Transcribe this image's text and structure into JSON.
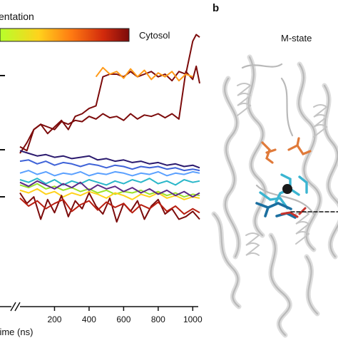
{
  "panel_left": {
    "colorbar_left_label": "entation",
    "colorbar_right_label": "Cytosol",
    "colorbar_colors": [
      "#b6ff2b",
      "#ffd21c",
      "#ff7b12",
      "#d22a0c",
      "#7c0b0b"
    ]
  },
  "panel_right": {
    "panel_letter": "b",
    "state_label": "M-state",
    "protein_color": "#cfcfcf",
    "ligand_colors": [
      "#3bb5d1",
      "#e07a3a",
      "#1b6fa0",
      "#c8322b"
    ]
  },
  "chart_data": {
    "type": "line",
    "title": "",
    "xlabel": "Time (ns)",
    "ylabel": "",
    "xlim": [
      0,
      1040
    ],
    "x_ticks": [
      200,
      400,
      600,
      800,
      1000
    ],
    "series": [
      {
        "color": "#7c0b0b",
        "x": [
          0,
          40,
          80,
          120,
          160,
          200,
          240,
          280,
          320,
          360,
          400,
          440,
          480,
          520,
          560,
          600,
          640,
          680,
          720,
          760,
          800,
          840,
          880,
          920,
          960,
          1000,
          1020,
          1040
        ],
        "y": [
          0.05,
          0.02,
          0.18,
          0.22,
          0.15,
          0.2,
          0.25,
          0.18,
          0.28,
          0.3,
          0.34,
          0.36,
          0.58,
          0.6,
          0.6,
          0.58,
          0.62,
          0.58,
          0.6,
          0.62,
          0.58,
          0.6,
          0.55,
          0.62,
          0.6,
          0.85,
          0.9,
          0.88
        ]
      },
      {
        "color": "#7c0b0b",
        "x": [
          0,
          40,
          80,
          120,
          160,
          200,
          240,
          280,
          320,
          360,
          400,
          440,
          480,
          520,
          560,
          600,
          640,
          680,
          720,
          760,
          800,
          840,
          880,
          920,
          960,
          1000,
          1020,
          1040
        ],
        "y": [
          0.0,
          0.08,
          0.18,
          0.22,
          0.2,
          0.18,
          0.24,
          0.22,
          0.25,
          0.24,
          0.28,
          0.26,
          0.3,
          0.27,
          0.28,
          0.25,
          0.3,
          0.26,
          0.29,
          0.28,
          0.3,
          0.27,
          0.3,
          0.26,
          0.62,
          0.56,
          0.66,
          0.53
        ]
      },
      {
        "color": "#ff9a18",
        "x": [
          440,
          480,
          520,
          560,
          600,
          640,
          680,
          720,
          760,
          800,
          840,
          880,
          920,
          960,
          1000
        ],
        "y": [
          0.58,
          0.65,
          0.6,
          0.62,
          0.57,
          0.64,
          0.58,
          0.63,
          0.56,
          0.61,
          0.58,
          0.62,
          0.55,
          0.6,
          0.58
        ]
      },
      {
        "color": "#2b1a6e",
        "x": [
          0,
          50,
          100,
          150,
          200,
          250,
          300,
          350,
          400,
          450,
          500,
          550,
          600,
          650,
          700,
          750,
          800,
          850,
          900,
          950,
          1000,
          1040
        ],
        "y": [
          0.02,
          0.0,
          -0.02,
          -0.01,
          -0.03,
          -0.02,
          -0.04,
          -0.03,
          -0.02,
          -0.05,
          -0.04,
          -0.06,
          -0.05,
          -0.07,
          -0.06,
          -0.08,
          -0.07,
          -0.09,
          -0.08,
          -0.1,
          -0.09,
          -0.11
        ]
      },
      {
        "color": "#3f63d8",
        "x": [
          0,
          50,
          100,
          150,
          200,
          250,
          300,
          350,
          400,
          450,
          500,
          550,
          600,
          650,
          700,
          750,
          800,
          850,
          900,
          950,
          1000,
          1040
        ],
        "y": [
          -0.06,
          -0.05,
          -0.08,
          -0.06,
          -0.09,
          -0.07,
          -0.08,
          -0.1,
          -0.08,
          -0.09,
          -0.11,
          -0.09,
          -0.1,
          -0.12,
          -0.1,
          -0.11,
          -0.1,
          -0.12,
          -0.11,
          -0.13,
          -0.12,
          -0.13
        ]
      },
      {
        "color": "#5aa0ff",
        "x": [
          0,
          50,
          100,
          150,
          200,
          250,
          300,
          350,
          400,
          450,
          500,
          550,
          600,
          650,
          700,
          750,
          800,
          850,
          900,
          950,
          1000,
          1040
        ],
        "y": [
          -0.15,
          -0.13,
          -0.16,
          -0.14,
          -0.17,
          -0.15,
          -0.16,
          -0.14,
          -0.17,
          -0.15,
          -0.16,
          -0.14,
          -0.15,
          -0.17,
          -0.15,
          -0.16,
          -0.14,
          -0.17,
          -0.15,
          -0.16,
          -0.14,
          -0.15
        ]
      },
      {
        "color": "#2ab7c9",
        "x": [
          0,
          50,
          100,
          150,
          200,
          250,
          300,
          350,
          400,
          450,
          500,
          550,
          600,
          650,
          700,
          750,
          800,
          850,
          900,
          950,
          1000,
          1040
        ],
        "y": [
          -0.2,
          -0.22,
          -0.19,
          -0.23,
          -0.2,
          -0.24,
          -0.21,
          -0.23,
          -0.2,
          -0.22,
          -0.24,
          -0.21,
          -0.23,
          -0.2,
          -0.22,
          -0.19,
          -0.23,
          -0.21,
          -0.24,
          -0.2,
          -0.22,
          -0.21
        ]
      },
      {
        "color": "#9be22a",
        "x": [
          0,
          50,
          100,
          150,
          200,
          250,
          300,
          350,
          400,
          450,
          500,
          550,
          600,
          650,
          700,
          750,
          800,
          850,
          900,
          950,
          1000,
          1040
        ],
        "y": [
          -0.24,
          -0.26,
          -0.23,
          -0.27,
          -0.25,
          -0.28,
          -0.26,
          -0.29,
          -0.27,
          -0.3,
          -0.28,
          -0.31,
          -0.29,
          -0.3,
          -0.28,
          -0.31,
          -0.29,
          -0.32,
          -0.3,
          -0.33,
          -0.31,
          -0.32
        ]
      },
      {
        "color": "#ffd21c",
        "x": [
          0,
          50,
          100,
          150,
          200,
          250,
          300,
          350,
          400,
          450,
          500,
          550,
          600,
          650,
          700,
          750,
          800,
          850,
          900,
          950,
          1000,
          1040
        ],
        "y": [
          -0.28,
          -0.3,
          -0.27,
          -0.31,
          -0.29,
          -0.33,
          -0.3,
          -0.32,
          -0.29,
          -0.31,
          -0.34,
          -0.3,
          -0.32,
          -0.35,
          -0.31,
          -0.33,
          -0.3,
          -0.34,
          -0.32,
          -0.35,
          -0.33,
          -0.34
        ]
      },
      {
        "color": "#7c0b0b",
        "x": [
          0,
          40,
          80,
          120,
          160,
          200,
          240,
          280,
          320,
          360,
          400,
          440,
          480,
          520,
          560,
          600,
          640,
          680,
          720,
          760,
          800,
          840,
          880,
          920,
          960,
          1000,
          1040
        ],
        "y": [
          -0.3,
          -0.38,
          -0.33,
          -0.5,
          -0.35,
          -0.45,
          -0.32,
          -0.48,
          -0.36,
          -0.42,
          -0.3,
          -0.4,
          -0.46,
          -0.34,
          -0.52,
          -0.38,
          -0.44,
          -0.36,
          -0.5,
          -0.4,
          -0.35,
          -0.46,
          -0.42,
          -0.5,
          -0.48,
          -0.44,
          -0.5
        ]
      },
      {
        "color": "#b81e10",
        "x": [
          0,
          50,
          100,
          150,
          200,
          250,
          300,
          350,
          400,
          450,
          500,
          550,
          600,
          650,
          700,
          750,
          800,
          850,
          900,
          950,
          1000,
          1040
        ],
        "y": [
          -0.34,
          -0.4,
          -0.36,
          -0.42,
          -0.38,
          -0.35,
          -0.44,
          -0.39,
          -0.36,
          -0.43,
          -0.37,
          -0.41,
          -0.38,
          -0.45,
          -0.39,
          -0.42,
          -0.37,
          -0.44,
          -0.4,
          -0.46,
          -0.42,
          -0.45
        ]
      },
      {
        "color": "#5b2a86",
        "x": [
          0,
          50,
          100,
          150,
          200,
          250,
          300,
          350,
          400,
          450,
          500,
          550,
          600,
          650,
          700,
          750,
          800,
          850,
          900,
          950,
          1000,
          1040
        ],
        "y": [
          -0.22,
          -0.25,
          -0.21,
          -0.24,
          -0.27,
          -0.23,
          -0.26,
          -0.22,
          -0.28,
          -0.24,
          -0.27,
          -0.25,
          -0.29,
          -0.26,
          -0.3,
          -0.27,
          -0.31,
          -0.28,
          -0.32,
          -0.29,
          -0.33,
          -0.3
        ]
      }
    ]
  }
}
